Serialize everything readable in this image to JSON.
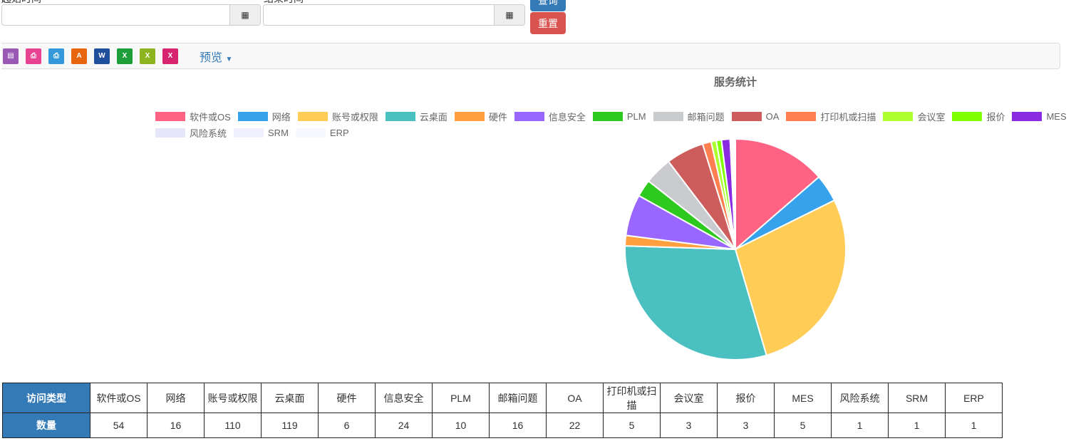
{
  "filters": {
    "start_label": "起始时间",
    "end_label": "结束时间",
    "start_value": "",
    "end_value": "",
    "calendar_icon": "calendar-icon"
  },
  "buttons": {
    "query": "查询",
    "reset": "重置",
    "query_color": "#337ab7",
    "reset_color": "#d9534f"
  },
  "toolbar": {
    "icons": [
      {
        "name": "copy-icon",
        "glyph": "▤",
        "color": "#9b59b6"
      },
      {
        "name": "print-pdf-icon",
        "glyph": "⎙",
        "color": "#e84393"
      },
      {
        "name": "print-icon",
        "glyph": "⎙",
        "color": "#3498db"
      },
      {
        "name": "pdf-icon",
        "glyph": "A",
        "color": "#e8650f"
      },
      {
        "name": "word-icon",
        "glyph": "W",
        "color": "#1f4e9c"
      },
      {
        "name": "excel-icon",
        "glyph": "X",
        "color": "#1e9e3a"
      },
      {
        "name": "excel-alt-icon",
        "glyph": "X",
        "color": "#8db41e"
      },
      {
        "name": "excel-pink-icon",
        "glyph": "X",
        "color": "#d6246e"
      }
    ],
    "preview": "预览"
  },
  "chart_data": {
    "type": "pie",
    "title": "服务统计",
    "legend_position": "top",
    "categories": [
      "软件或OS",
      "网络",
      "账号或权限",
      "云桌面",
      "硬件",
      "信息安全",
      "PLM",
      "邮箱问题",
      "OA",
      "打印机或扫描",
      "会议室",
      "报价",
      "MES",
      "风险系统",
      "SRM",
      "ERP"
    ],
    "values": [
      54,
      16,
      110,
      119,
      6,
      24,
      10,
      16,
      22,
      5,
      3,
      3,
      5,
      1,
      1,
      1
    ],
    "colors": [
      "#ff6384",
      "#36a2eb",
      "#ffcd56",
      "#4bc0c0",
      "#ff9f40",
      "#9966ff",
      "#2ec91f",
      "#c9cbcf",
      "#cd5c5c",
      "#ff7f50",
      "#adff2f",
      "#7fff00",
      "#8a2be2",
      "#e6e6fa",
      "#f0f0ff",
      "#f8f8ff"
    ]
  },
  "table": {
    "row1_header": "访问类型",
    "row2_header": "数量"
  }
}
